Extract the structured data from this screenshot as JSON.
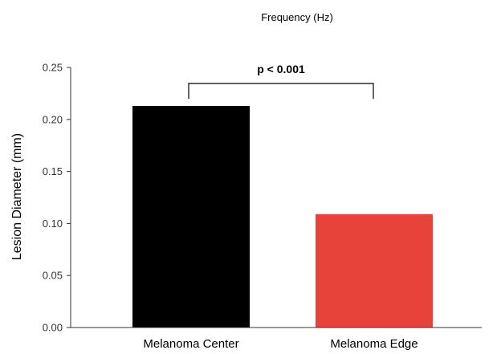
{
  "chart_data": {
    "type": "bar",
    "title": "Frequency (Hz)",
    "xlabel": "",
    "ylabel": "Lesion Diameter (mm)",
    "categories": [
      "Melanoma Center",
      "Melanoma Edge"
    ],
    "values": [
      0.213,
      0.109
    ],
    "ylim": [
      0,
      0.25
    ],
    "yticks": [
      "0.00",
      "0.05",
      "0.10",
      "0.15",
      "0.20",
      "0.25"
    ],
    "grid": false,
    "legend": "none",
    "colors": [
      "#000000",
      "#e8433a"
    ],
    "annotations": [
      {
        "text": "p < 0.001",
        "between": [
          "Melanoma Center",
          "Melanoma Edge"
        ]
      }
    ]
  }
}
